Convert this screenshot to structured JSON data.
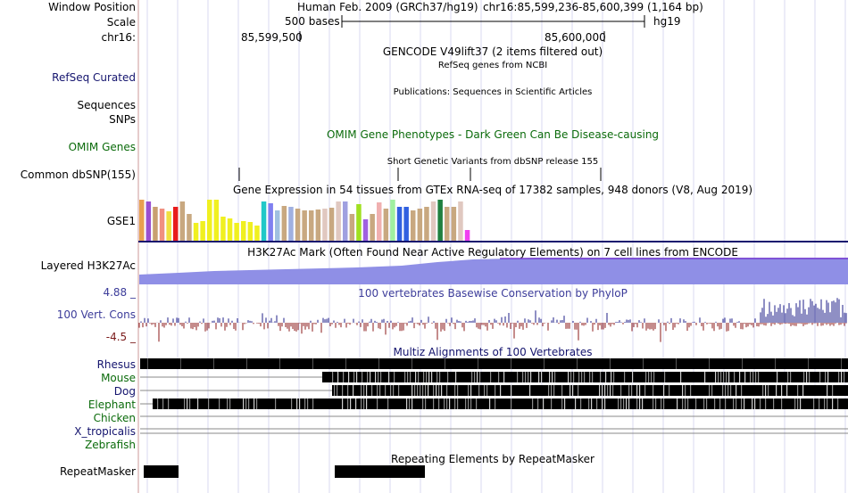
{
  "header": {
    "window_position_label": "Window Position",
    "assembly": "Human Feb. 2009 (GRCh37/hg19)",
    "position": "chr16:85,599,236-85,600,399 (1,164 bp)",
    "scale_label": "Scale",
    "scale_value": "500 bases",
    "scale_db": "hg19",
    "chrom_label": "chr16:",
    "coord_ticks": [
      "85,599,500",
      "85,600,000"
    ]
  },
  "tracks": {
    "gencode_title": "GENCODE V49lift37 (2 items filtered out)",
    "refseq_label": "RefSeq Curated",
    "refseq_title": "RefSeq genes from NCBI",
    "publications_title": "Publications: Sequences in Scientific Articles",
    "sequences_label": "Sequences",
    "snps_label": "SNPs",
    "omim_label": "OMIM Genes",
    "omim_title": "OMIM Gene Phenotypes - Dark Green Can Be Disease-causing",
    "dbsnp_title": "Short Genetic Variants from dbSNP release 155",
    "dbsnp_label": "Common dbSNP(155)",
    "gtex_title": "Gene Expression in 54 tissues from GTEx RNA-seq of 17382 samples, 948 donors (V8, Aug 2019)",
    "gtex_label": "GSE1",
    "h3k27ac_label": "Layered H3K27Ac",
    "h3k27ac_title": "H3K27Ac Mark (Often Found Near Active Regulatory Elements) on 7 cell lines from ENCODE",
    "cons_max": "4.88 _",
    "cons_label": "100 Vert. Cons",
    "cons_min": "-4.5 _",
    "cons_title": "100 vertebrates Basewise Conservation by PhyloP",
    "multiz_title": "Multiz Alignments of 100 Vertebrates",
    "species": [
      "Rhesus",
      "Mouse",
      "Dog",
      "Elephant",
      "Chicken",
      "X_tropicalis",
      "Zebrafish"
    ],
    "repeat_title": "Repeating Elements by RepeatMasker",
    "repeat_label": "RepeatMasker"
  },
  "colors": {
    "navy": "#14146e",
    "green": "#0b6b0b",
    "purple": "#3c3c9a",
    "conservation_pos": "#1f1f8a",
    "conservation_neg": "#8b1a1a",
    "h3k27ac_fill": "#8f8fe6",
    "grid": "#d8d8f0",
    "gtex_bars": [
      "#e8a050",
      "#9a4fd0",
      "#c8a070",
      "#f09080",
      "#f0e040",
      "#e81c1c",
      "#c8a880",
      "#c8a880",
      "#f0f020",
      "#f0f020",
      "#f0f020",
      "#f0f020",
      "#f0f020",
      "#f0f020",
      "#f0f020",
      "#f0f020",
      "#f0f020",
      "#f0f020",
      "#20c8c8",
      "#8080f0",
      "#a0c0e0",
      "#c8a880",
      "#a0b0e0",
      "#c8a880",
      "#c8a880",
      "#c8a880",
      "#c8a880",
      "#e0c8c0",
      "#c8a880",
      "#e0c8c0",
      "#a0a0e0",
      "#c8a880",
      "#a0e020",
      "#a060e0",
      "#c8a880",
      "#f0b0b0",
      "#c8a880",
      "#a0f0a0",
      "#3060e0",
      "#3060e0",
      "#c8a880",
      "#c8a880",
      "#c8a880",
      "#e0c8c0",
      "#208040",
      "#c8a880",
      "#c8a880",
      "#e0c8c0",
      "#f040f0"
    ]
  }
}
